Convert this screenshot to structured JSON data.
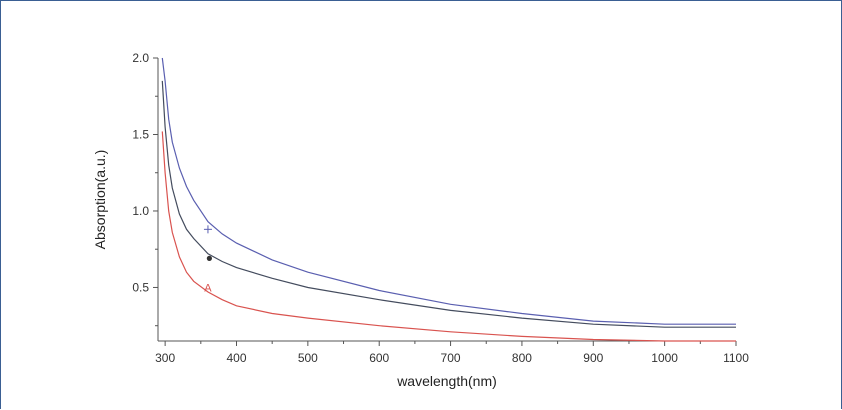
{
  "chart_data": {
    "type": "line",
    "xlabel": "wavelength(nm)",
    "ylabel": "Absorption(a.u.)",
    "xlim": [
      290,
      1100
    ],
    "ylim": [
      0.15,
      2.0
    ],
    "x_ticks": [
      300,
      400,
      500,
      600,
      700,
      800,
      900,
      1000,
      1100
    ],
    "y_ticks": [
      0.5,
      1.0,
      1.5,
      2.0
    ],
    "x_tick_labels": [
      "300",
      "400",
      "500",
      "600",
      "700",
      "800",
      "900",
      "1000",
      "1100"
    ],
    "y_tick_labels": [
      "0.5",
      "1.0",
      "1.5",
      "2.0"
    ],
    "grid": false,
    "x": [
      296,
      300,
      305,
      310,
      320,
      330,
      340,
      360,
      380,
      400,
      450,
      500,
      600,
      700,
      800,
      900,
      1000,
      1100
    ],
    "series": [
      {
        "name": "",
        "color": "#5a5fb0",
        "values": [
          2.0,
          1.85,
          1.6,
          1.45,
          1.28,
          1.16,
          1.07,
          0.93,
          0.85,
          0.79,
          0.68,
          0.6,
          0.48,
          0.39,
          0.33,
          0.28,
          0.26,
          0.26
        ]
      },
      {
        "name": "",
        "color": "#444c5e",
        "values": [
          1.85,
          1.55,
          1.3,
          1.15,
          0.98,
          0.88,
          0.82,
          0.72,
          0.67,
          0.63,
          0.56,
          0.5,
          0.42,
          0.35,
          0.3,
          0.26,
          0.24,
          0.24
        ]
      },
      {
        "name": "",
        "color": "#d9534f",
        "values": [
          1.52,
          1.25,
          1.0,
          0.86,
          0.7,
          0.6,
          0.54,
          0.47,
          0.42,
          0.38,
          0.33,
          0.3,
          0.25,
          0.21,
          0.18,
          0.16,
          0.15,
          0.15
        ]
      }
    ],
    "annotations": [
      {
        "label": "",
        "series_index": 0,
        "x": 360,
        "y": 0.88,
        "symbol": "cross",
        "color": "#5a5fb0"
      },
      {
        "label": "",
        "series_index": 1,
        "x": 362,
        "y": 0.69,
        "symbol": "dot",
        "color": "#333333"
      },
      {
        "label": "A",
        "series_index": 2,
        "x": 360,
        "y": 0.5,
        "symbol": "text",
        "color": "#d9534f"
      }
    ]
  }
}
